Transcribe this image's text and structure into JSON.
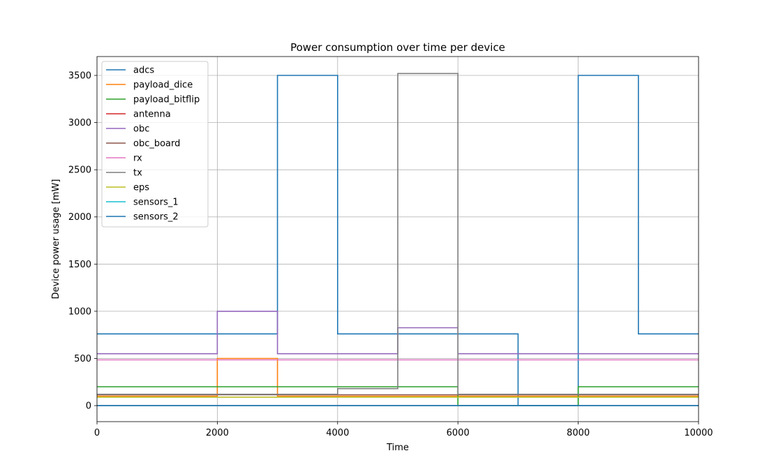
{
  "chart_data": {
    "type": "line",
    "title": "Power consumption over time per device",
    "xlabel": "Time",
    "ylabel": "Device power usage [mW]",
    "xlim": [
      0,
      10000
    ],
    "ylim": [
      -170,
      3700
    ],
    "xticks": [
      0,
      2000,
      4000,
      6000,
      8000,
      10000
    ],
    "yticks": [
      0,
      500,
      1000,
      1500,
      2000,
      2500,
      3000,
      3500
    ],
    "grid": true,
    "legend_position": "top-left",
    "series": [
      {
        "name": "adcs",
        "color": "#1f77b4",
        "x": [
          0,
          3000,
          3000,
          4000,
          4000,
          7000,
          7000,
          8000,
          8000,
          9000,
          9000,
          10000
        ],
        "y": [
          760,
          760,
          3500,
          3500,
          760,
          760,
          0,
          0,
          3500,
          3500,
          760,
          760
        ]
      },
      {
        "name": "payload_dice",
        "color": "#ff7f0e",
        "x": [
          0,
          2000,
          2000,
          3000,
          3000,
          10000
        ],
        "y": [
          100,
          100,
          500,
          500,
          100,
          100
        ]
      },
      {
        "name": "payload_bitflip",
        "color": "#2ca02c",
        "x": [
          0,
          6000,
          6000,
          8000,
          8000,
          10000
        ],
        "y": [
          200,
          200,
          0,
          0,
          200,
          200
        ]
      },
      {
        "name": "antenna",
        "color": "#d62728",
        "x": [
          0,
          10000
        ],
        "y": [
          0,
          0
        ]
      },
      {
        "name": "obc",
        "color": "#9467bd",
        "x": [
          0,
          2000,
          2000,
          3000,
          3000,
          5000,
          5000,
          6000,
          6000,
          10000
        ],
        "y": [
          550,
          550,
          1000,
          1000,
          550,
          550,
          825,
          825,
          550,
          550
        ]
      },
      {
        "name": "obc_board",
        "color": "#8c564b",
        "x": [
          0,
          10000
        ],
        "y": [
          115,
          115
        ]
      },
      {
        "name": "rx",
        "color": "#e377c2",
        "x": [
          0,
          10000
        ],
        "y": [
          485,
          485
        ]
      },
      {
        "name": "tx",
        "color": "#7f7f7f",
        "x": [
          0,
          4000,
          4000,
          5000,
          5000,
          6000,
          6000,
          10000
        ],
        "y": [
          120,
          120,
          180,
          180,
          3520,
          3520,
          120,
          120
        ]
      },
      {
        "name": "eps",
        "color": "#bcbd22",
        "x": [
          0,
          10000
        ],
        "y": [
          90,
          90
        ]
      },
      {
        "name": "sensors_1",
        "color": "#17becf",
        "x": [
          0,
          10000
        ],
        "y": [
          0,
          0
        ]
      },
      {
        "name": "sensors_2",
        "color": "#1f77b4",
        "x": [
          0,
          10000
        ],
        "y": [
          0,
          0
        ]
      }
    ]
  }
}
